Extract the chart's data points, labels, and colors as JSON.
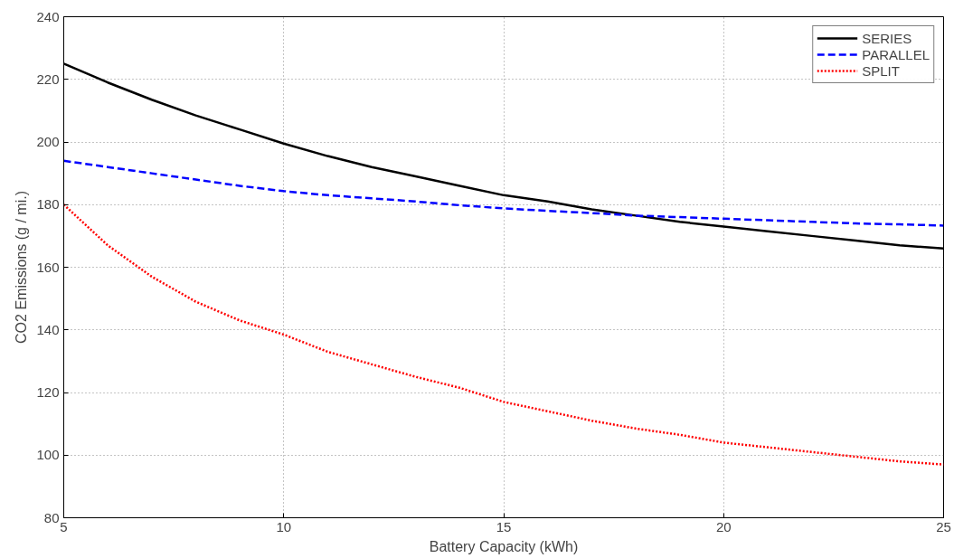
{
  "chart_data": {
    "type": "line",
    "xlabel": "Battery Capacity (kWh)",
    "ylabel": "CO2 Emissions (g / mi.)",
    "x": [
      5,
      6,
      7,
      8,
      9,
      10,
      11,
      12,
      13,
      14,
      15,
      16,
      17,
      18,
      19,
      20,
      21,
      22,
      23,
      24,
      25
    ],
    "xlim": [
      5,
      25
    ],
    "xticks": [
      5,
      10,
      15,
      20,
      25
    ],
    "ylim": [
      80,
      240
    ],
    "yticks": [
      80,
      100,
      120,
      140,
      160,
      180,
      200,
      220,
      240
    ],
    "grid": true,
    "legend": "top right",
    "marker": "none",
    "series": [
      {
        "name": "SERIES",
        "color": "#000000",
        "line_style": "solid",
        "values": [
          225,
          219,
          213.5,
          208.5,
          204,
          199.5,
          195.5,
          192,
          189,
          186,
          183,
          181,
          178.5,
          176.5,
          174.5,
          173,
          171.5,
          170,
          168.5,
          167,
          166
        ]
      },
      {
        "name": "PARALLEL",
        "color": "#0000ff",
        "line_style": "dashed",
        "values": [
          194,
          192,
          190,
          188,
          186,
          184.3,
          183,
          182,
          181,
          179.8,
          178.8,
          178,
          177.3,
          176.5,
          176,
          175.5,
          175,
          174.5,
          174,
          173.7,
          173.3
        ]
      },
      {
        "name": "SPLIT",
        "color": "#ff0000",
        "line_style": "dotted",
        "values": [
          180,
          167,
          157,
          149,
          143,
          138.5,
          133,
          129,
          125,
          121.5,
          117,
          114,
          111,
          108.5,
          106.5,
          104,
          102.5,
          101,
          99.5,
          98,
          97
        ]
      }
    ]
  }
}
